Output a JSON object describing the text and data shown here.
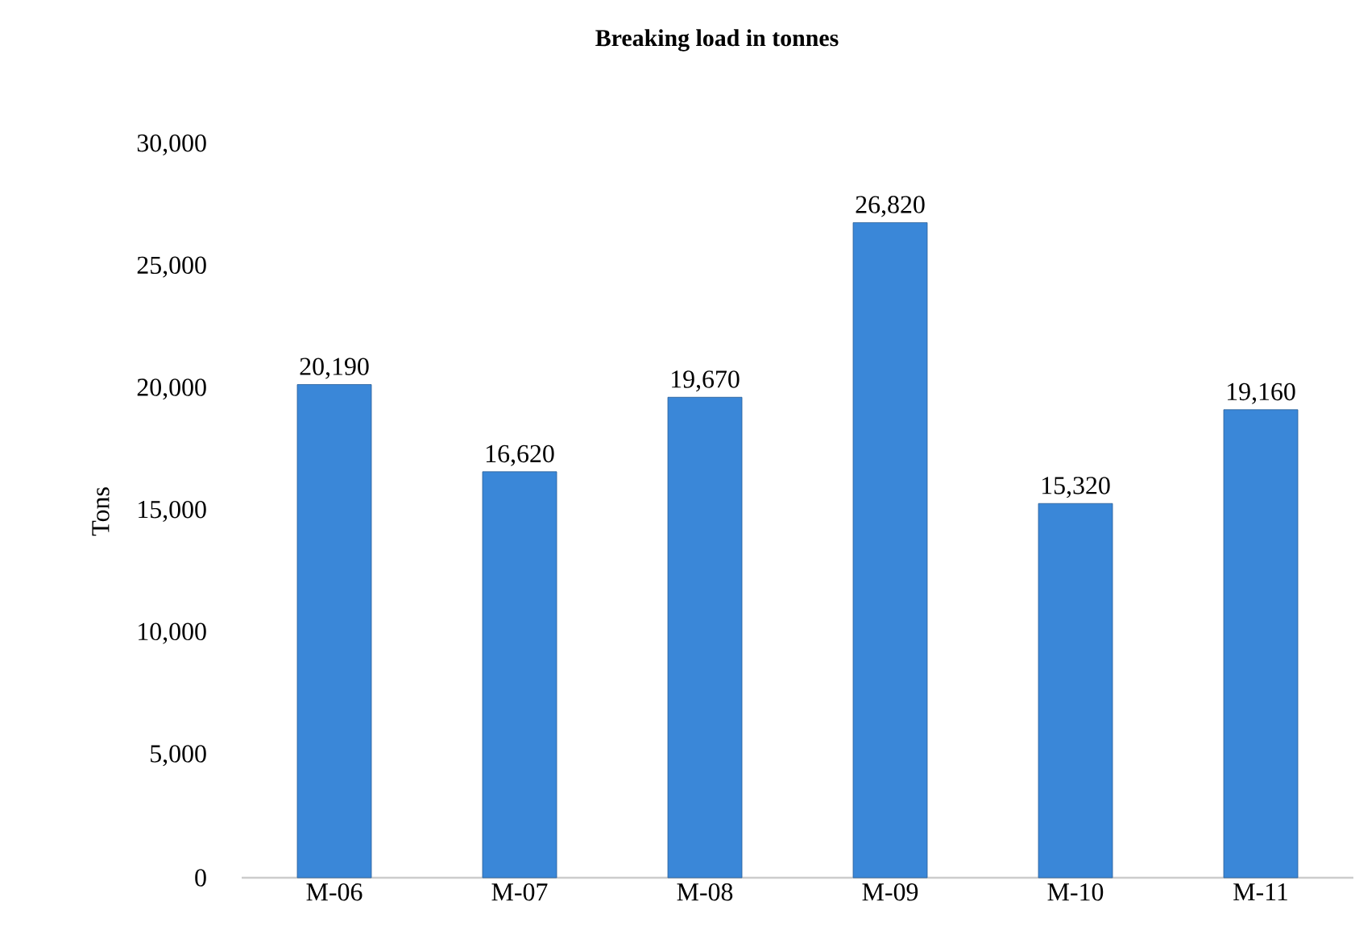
{
  "chart_data": {
    "type": "bar",
    "title": "Breaking load in tonnes",
    "ylabel": "Tons",
    "categories": [
      "M-06",
      "M-07",
      "M-08",
      "M-09",
      "M-10",
      "M-11"
    ],
    "values": [
      20190,
      16620,
      19670,
      26820,
      15320,
      19160
    ],
    "value_labels": [
      "20,190",
      "16,620",
      "19,670",
      "26,820",
      "15,320",
      "19,160"
    ],
    "color": "#3a87d8",
    "ylim": [
      0,
      30000
    ],
    "yticks": [
      0,
      {
        "value": 5000,
        "label": "5,000"
      },
      {
        "value": 10000,
        "label": "10,000"
      },
      {
        "value": 15000,
        "label": "15,000"
      },
      {
        "value": 20000,
        "label": "20,000"
      },
      {
        "value": 25000,
        "label": "25,000"
      },
      {
        "value": 30000,
        "label": "30,000"
      }
    ]
  }
}
